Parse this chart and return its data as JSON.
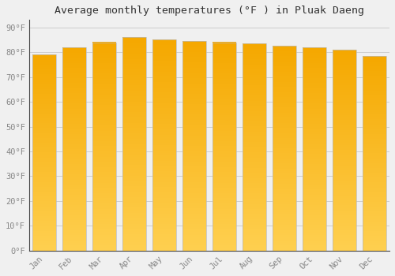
{
  "title": "Average monthly temperatures (°F ) in Pluak Daeng",
  "months": [
    "Jan",
    "Feb",
    "Mar",
    "Apr",
    "May",
    "Jun",
    "Jul",
    "Aug",
    "Sep",
    "Oct",
    "Nov",
    "Dec"
  ],
  "values": [
    79.0,
    82.0,
    84.0,
    86.0,
    85.0,
    84.5,
    84.0,
    83.5,
    82.5,
    82.0,
    81.0,
    78.5
  ],
  "bar_color_outer": "#F5A800",
  "bar_color_inner": "#FFD050",
  "bar_edge_color": "#BBBBBB",
  "background_color": "#F0F0F0",
  "grid_color": "#CCCCCC",
  "ytick_labels": [
    "0°F",
    "10°F",
    "20°F",
    "30°F",
    "40°F",
    "50°F",
    "60°F",
    "70°F",
    "80°F",
    "90°F"
  ],
  "ytick_values": [
    0,
    10,
    20,
    30,
    40,
    50,
    60,
    70,
    80,
    90
  ],
  "ylim": [
    0,
    93
  ],
  "title_fontsize": 9.5,
  "tick_fontsize": 7.5,
  "tick_color": "#888888",
  "title_color": "#333333",
  "font_family": "monospace",
  "bar_width": 0.78
}
